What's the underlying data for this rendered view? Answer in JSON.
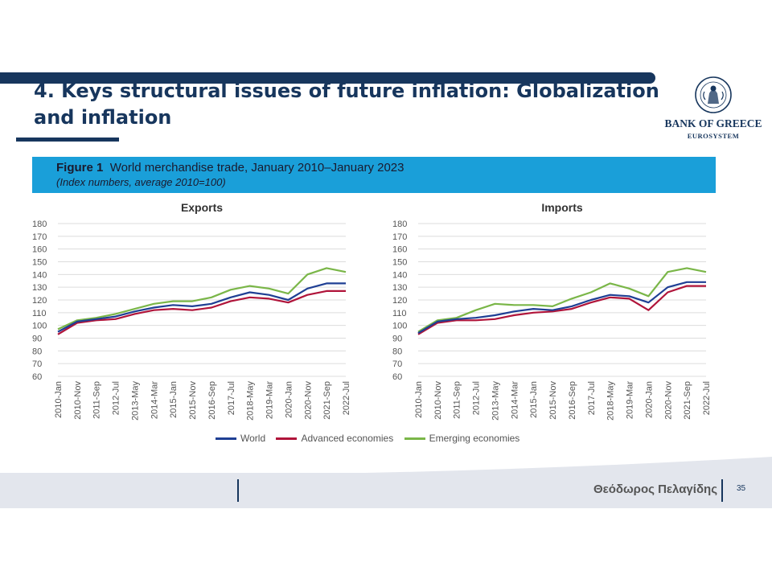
{
  "slide": {
    "title": "4. Keys structural issues of future inflation: Globalization and inflation",
    "author": "Θεόδωρος Πελαγίδης",
    "page_number": "35"
  },
  "logo": {
    "bank_name": "BANK OF GREECE",
    "eurosystem": "EUROSYSTEM"
  },
  "figure": {
    "label": "Figure 1",
    "title": "World merchandise trade, January 2010–January 2023",
    "subtitle": "(Index numbers, average 2010=100)"
  },
  "legend": [
    {
      "name": "World",
      "color": "#1f3f94"
    },
    {
      "name": "Advanced economies",
      "color": "#b0143a"
    },
    {
      "name": "Emerging economies",
      "color": "#7ab648"
    }
  ],
  "chart_data": [
    {
      "type": "line",
      "title": "Exports",
      "ylim": [
        60,
        180
      ],
      "yticks": [
        60,
        70,
        80,
        90,
        100,
        110,
        120,
        130,
        140,
        150,
        160,
        170,
        180
      ],
      "x": [
        "2010-Jan",
        "2010-Nov",
        "2011-Sep",
        "2012-Jul",
        "2013-May",
        "2014-Mar",
        "2015-Jan",
        "2015-Nov",
        "2016-Sep",
        "2017-Jul",
        "2018-May",
        "2019-Mar",
        "2020-Jan",
        "2020-Nov",
        "2021-Sep",
        "2022-Jul"
      ],
      "grid": true,
      "series": [
        {
          "name": "World",
          "color": "#1f3f94",
          "values": [
            95,
            103,
            105,
            107,
            111,
            114,
            116,
            115,
            117,
            122,
            126,
            124,
            120,
            129,
            133,
            133
          ]
        },
        {
          "name": "Advanced economies",
          "color": "#b0143a",
          "values": [
            93,
            102,
            104,
            105,
            109,
            112,
            113,
            112,
            114,
            119,
            122,
            121,
            118,
            124,
            127,
            127
          ]
        },
        {
          "name": "Emerging economies",
          "color": "#7ab648",
          "values": [
            97,
            104,
            106,
            109,
            113,
            117,
            119,
            119,
            122,
            128,
            131,
            129,
            125,
            140,
            145,
            142
          ]
        }
      ]
    },
    {
      "type": "line",
      "title": "Imports",
      "ylim": [
        60,
        180
      ],
      "yticks": [
        60,
        70,
        80,
        90,
        100,
        110,
        120,
        130,
        140,
        150,
        160,
        170,
        180
      ],
      "x": [
        "2010-Jan",
        "2010-Nov",
        "2011-Sep",
        "2012-Jul",
        "2013-May",
        "2014-Mar",
        "2015-Jan",
        "2015-Nov",
        "2016-Sep",
        "2017-Jul",
        "2018-May",
        "2019-Mar",
        "2020-Jan",
        "2020-Nov",
        "2021-Sep",
        "2022-Jul"
      ],
      "grid": true,
      "series": [
        {
          "name": "World",
          "color": "#1f3f94",
          "values": [
            94,
            103,
            105,
            106,
            108,
            111,
            113,
            112,
            115,
            120,
            124,
            123,
            118,
            130,
            134,
            134
          ]
        },
        {
          "name": "Advanced economies",
          "color": "#b0143a",
          "values": [
            93,
            102,
            104,
            104,
            105,
            108,
            110,
            111,
            113,
            118,
            122,
            121,
            112,
            126,
            131,
            131
          ]
        },
        {
          "name": "Emerging economies",
          "color": "#7ab648",
          "values": [
            95,
            104,
            106,
            112,
            117,
            116,
            116,
            115,
            121,
            126,
            133,
            129,
            123,
            142,
            145,
            142
          ]
        }
      ]
    }
  ]
}
